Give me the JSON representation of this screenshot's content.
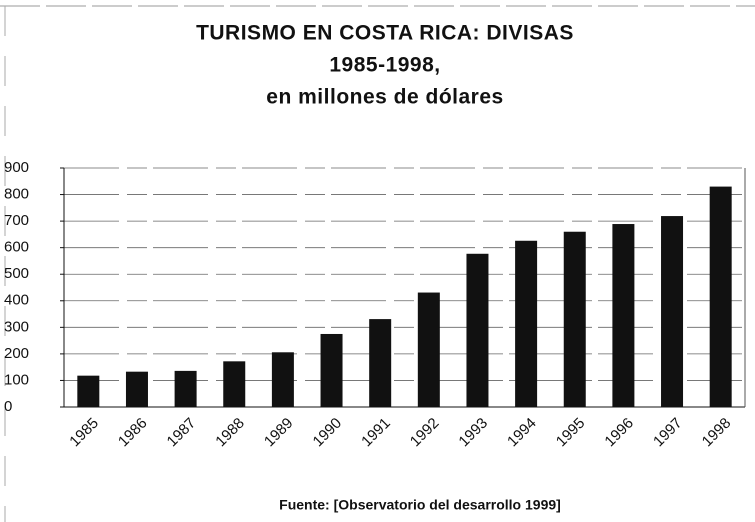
{
  "chart_data": {
    "type": "bar",
    "title": [
      "TURISMO EN COSTA RICA: DIVISAS",
      "1985-1998,",
      "en millones de dólares"
    ],
    "categories": [
      "1985",
      "1986",
      "1987",
      "1988",
      "1989",
      "1990",
      "1991",
      "1992",
      "1993",
      "1994",
      "1995",
      "1996",
      "1997",
      "1998"
    ],
    "values": [
      118,
      133,
      136,
      172,
      206,
      275,
      331,
      431,
      577,
      626,
      660,
      689,
      719,
      830
    ],
    "color": "#111111",
    "ylim": [
      0,
      900
    ],
    "yticks": [
      0,
      100,
      200,
      300,
      400,
      500,
      600,
      700,
      800,
      900
    ],
    "grid": true,
    "source": "Fuente: [Observatorio del desarrollo 1999]"
  }
}
